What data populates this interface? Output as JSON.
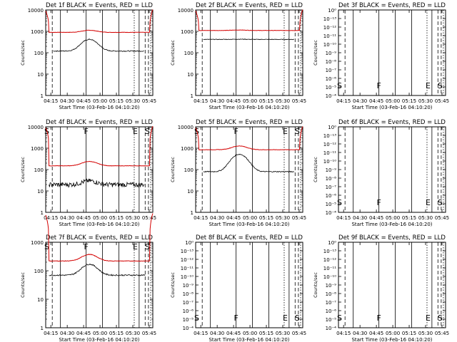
{
  "time_ticks": [
    "04:15",
    "04:30",
    "04:45",
    "05:00",
    "05:15",
    "05:30",
    "05:45"
  ],
  "ylabel": "Counts/sec",
  "xlabel": "Start Time (03-Feb-16 04:10:20)",
  "colors": {
    "events": "#000000",
    "lld": "#d40000"
  },
  "event_line_minutes": [
    13.5,
    37,
    52,
    67,
    85.5
  ],
  "dashed_minutes": [
    6,
    91,
    94
  ],
  "dotted_minutes": [
    81,
    96
  ],
  "panels": [
    {
      "title": "Det 1f BLACK = Events, RED = LLD",
      "scale": "counts",
      "yticks": [
        "1",
        "10",
        "100",
        "1000",
        "10000"
      ],
      "markers": [],
      "lld": {
        "base": 900,
        "bump": 1.25
      },
      "events": {
        "base": 120,
        "peak": 420,
        "noise": 0.05,
        "start": 7,
        "end": 90
      }
    },
    {
      "title": "Det 2f BLACK = Events, RED = LLD",
      "scale": "counts",
      "yticks": [
        "1",
        "10",
        "100",
        "1000",
        "10000"
      ],
      "markers": [],
      "lld": {
        "base": 1100,
        "bump": 1.05
      },
      "events": {
        "base": 420,
        "peak": 430,
        "noise": 0.03,
        "start": 7,
        "end": 90
      }
    },
    {
      "title": "Det 3f BLACK = Events, RED = LLD",
      "scale": "empty",
      "yticks": [
        "10⁻⁴",
        "10⁻⁵",
        "10⁻⁶",
        "10⁻⁷",
        "10⁻⁸",
        "10⁻⁹",
        "10⁻¹⁰",
        "10⁻¹¹",
        "10⁻¹²",
        "10⁻¹³",
        "10⁰"
      ],
      "markers": [
        "S",
        "F",
        "E",
        "S"
      ]
    },
    {
      "title": "Det 4f BLACK = Events, RED = LLD",
      "scale": "counts",
      "yticks": [
        "1",
        "10",
        "100",
        "1000",
        "10000"
      ],
      "markers": [
        "S",
        "F",
        "E",
        "S"
      ],
      "lld": {
        "base": 150,
        "bump": 1.6
      },
      "events": {
        "base": 20,
        "peak": 30,
        "noise": 0.25,
        "start": 3,
        "end": 90
      }
    },
    {
      "title": "Det 5f BLACK = Events, RED = LLD",
      "scale": "counts",
      "yticks": [
        "1",
        "10",
        "100",
        "1000",
        "10000"
      ],
      "markers": [
        "S",
        "F",
        "E",
        "S"
      ],
      "lld": {
        "base": 850,
        "bump": 1.5
      },
      "events": {
        "base": 80,
        "peak": 520,
        "noise": 0.05,
        "start": 7,
        "end": 90
      }
    },
    {
      "title": "Det 6f BLACK = Events, RED = LLD",
      "scale": "empty",
      "yticks": [
        "10⁻⁴",
        "10⁻⁵",
        "10⁻⁶",
        "10⁻⁷",
        "10⁻⁸",
        "10⁻⁹",
        "10⁻¹⁰",
        "10⁻¹¹",
        "10⁻¹²",
        "10⁻¹³",
        "10⁰"
      ],
      "markers": [
        "S",
        "F",
        "E",
        "S"
      ]
    },
    {
      "title": "Det 7f BLACK = Events, RED = LLD",
      "scale": "counts",
      "yticks": [
        "1",
        "10",
        "100",
        "1000"
      ],
      "markers": [
        "S",
        "F",
        "E",
        "S"
      ],
      "lld": {
        "base": 220,
        "bump": 1.7
      },
      "events": {
        "base": 70,
        "peak": 170,
        "noise": 0.05,
        "start": 3,
        "end": 91
      }
    },
    {
      "title": "Det 8f BLACK = Events, RED = LLD",
      "scale": "empty",
      "yticks": [
        "10⁻⁴",
        "10⁻⁵",
        "10⁻⁶",
        "10⁻⁷",
        "10⁻⁸",
        "10⁻⁹",
        "10⁻¹⁰",
        "10⁻¹¹",
        "10⁻¹²",
        "10⁻¹³",
        "10⁰"
      ],
      "markers": [
        "S",
        "F",
        "E",
        "S"
      ]
    },
    {
      "title": "Det 9f BLACK = Events, RED = LLD",
      "scale": "empty",
      "yticks": [
        "10⁻⁴",
        "10⁻⁵",
        "10⁻⁶",
        "10⁻⁷",
        "10⁻⁸",
        "10⁻⁹",
        "10⁻¹⁰",
        "10⁻¹¹",
        "10⁻¹²",
        "10⁻¹³",
        "10⁰"
      ],
      "markers": [
        "S",
        "F",
        "E",
        "S"
      ]
    }
  ],
  "chart_data": {
    "type": "line",
    "x_axis": "time",
    "x_range": [
      "04:10:20",
      "05:48"
    ],
    "series_names": [
      "Events",
      "LLD"
    ],
    "charts": [
      {
        "panel": "Det 1f",
        "events_level": "~120-420",
        "lld_level": "~900",
        "ylim": [
          1,
          10000
        ],
        "log_y": true
      },
      {
        "panel": "Det 2f",
        "events_level": "~420",
        "lld_level": "~1100",
        "ylim": [
          1,
          10000
        ],
        "log_y": true
      },
      {
        "panel": "Det 3f",
        "empty": true
      },
      {
        "panel": "Det 4f",
        "events_level": "~20-30",
        "lld_level": "~150-250",
        "ylim": [
          1,
          10000
        ],
        "log_y": true
      },
      {
        "panel": "Det 5f",
        "events_level": "~80-520",
        "lld_level": "~850-1300",
        "ylim": [
          1,
          10000
        ],
        "log_y": true
      },
      {
        "panel": "Det 6f",
        "empty": true
      },
      {
        "panel": "Det 7f",
        "events_level": "~70-170",
        "lld_level": "~220-380",
        "ylim": [
          1,
          1000
        ],
        "log_y": true
      },
      {
        "panel": "Det 8f",
        "empty": true
      },
      {
        "panel": "Det 9f",
        "empty": true
      }
    ]
  }
}
